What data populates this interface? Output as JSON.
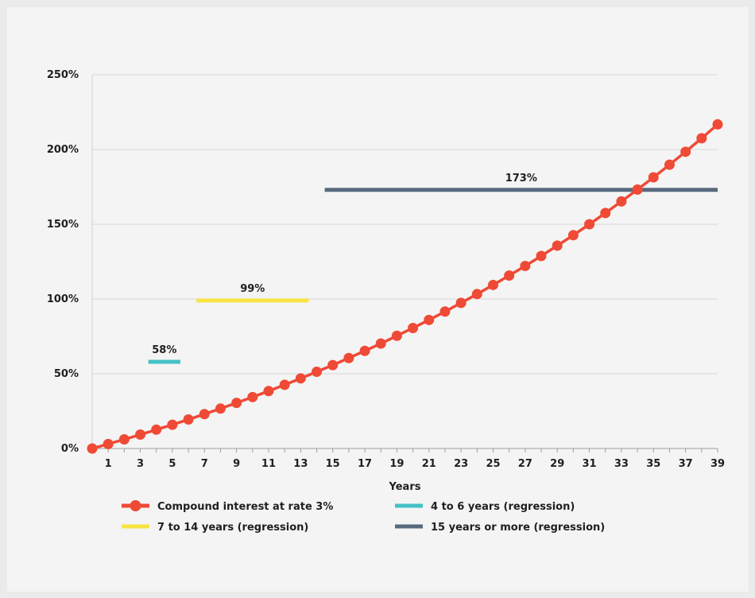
{
  "chart_data": {
    "type": "line",
    "xlabel": "Years",
    "ylabel": "",
    "ylim": [
      0,
      250
    ],
    "xlim": [
      0,
      39
    ],
    "y_ticks": [
      {
        "value": 0,
        "label": "0%"
      },
      {
        "value": 50,
        "label": "50%"
      },
      {
        "value": 100,
        "label": "100%"
      },
      {
        "value": 150,
        "label": "150%"
      },
      {
        "value": 200,
        "label": "200%"
      },
      {
        "value": 250,
        "label": "250%"
      }
    ],
    "x_ticks": [
      {
        "value": 1,
        "label": "1"
      },
      {
        "value": 3,
        "label": "3"
      },
      {
        "value": 5,
        "label": "5"
      },
      {
        "value": 7,
        "label": "7"
      },
      {
        "value": 9,
        "label": "9"
      },
      {
        "value": 11,
        "label": "11"
      },
      {
        "value": 13,
        "label": "13"
      },
      {
        "value": 15,
        "label": "15"
      },
      {
        "value": 17,
        "label": "17"
      },
      {
        "value": 19,
        "label": "19"
      },
      {
        "value": 21,
        "label": "21"
      },
      {
        "value": 23,
        "label": "23"
      },
      {
        "value": 25,
        "label": "25"
      },
      {
        "value": 27,
        "label": "27"
      },
      {
        "value": 29,
        "label": "29"
      },
      {
        "value": 31,
        "label": "31"
      },
      {
        "value": 33,
        "label": "33"
      },
      {
        "value": 35,
        "label": "35"
      },
      {
        "value": 37,
        "label": "37"
      },
      {
        "value": 39,
        "label": "39"
      }
    ],
    "grid": "horizontal",
    "legend_position": "bottom",
    "series": [
      {
        "name": "Compound interest at rate 3%",
        "kind": "line-markers",
        "color": "#ef4a36",
        "x": [
          0,
          1,
          2,
          3,
          4,
          5,
          6,
          7,
          8,
          9,
          10,
          11,
          12,
          13,
          14,
          15,
          16,
          17,
          18,
          19,
          20,
          21,
          22,
          23,
          24,
          25,
          26,
          27,
          28,
          29,
          30,
          31,
          32,
          33,
          34,
          35,
          36,
          37,
          38,
          39
        ],
        "values": [
          0,
          3,
          6.1,
          9.3,
          12.6,
          15.9,
          19.4,
          23,
          26.7,
          30.5,
          34.4,
          38.4,
          42.6,
          46.9,
          51.3,
          55.8,
          60.5,
          65.3,
          70.2,
          75.4,
          80.6,
          86,
          91.6,
          97.4,
          103.3,
          109.4,
          115.7,
          122.1,
          128.8,
          135.7,
          142.7,
          150,
          157.5,
          165.3,
          173.2,
          181.4,
          189.8,
          198.5,
          207.5,
          216.8
        ]
      },
      {
        "name": "4 to 6 years (regression)",
        "kind": "segment",
        "color": "#45c1c4",
        "x": [
          3.5,
          5.5
        ],
        "values": [
          58,
          58
        ],
        "label": "58%"
      },
      {
        "name": "7 to 14 years (regression)",
        "kind": "segment",
        "color": "#f7e443",
        "x": [
          6.5,
          13.5
        ],
        "values": [
          99,
          99
        ],
        "label": "99%"
      },
      {
        "name": "15 years or more (regression)",
        "kind": "segment",
        "color": "#56697d",
        "x": [
          14.5,
          39
        ],
        "values": [
          173,
          173
        ],
        "label": "173%"
      }
    ],
    "legend": [
      {
        "name": "Compound interest at rate 3%",
        "color": "#ef4a36",
        "marker": "line-dot"
      },
      {
        "name": "4 to 6 years (regression)",
        "color": "#45c1c4",
        "marker": "line"
      },
      {
        "name": "7 to 14 years (regression)",
        "color": "#f7e443",
        "marker": "line"
      },
      {
        "name": "15 years or more (regression)",
        "color": "#56697d",
        "marker": "line"
      }
    ]
  }
}
